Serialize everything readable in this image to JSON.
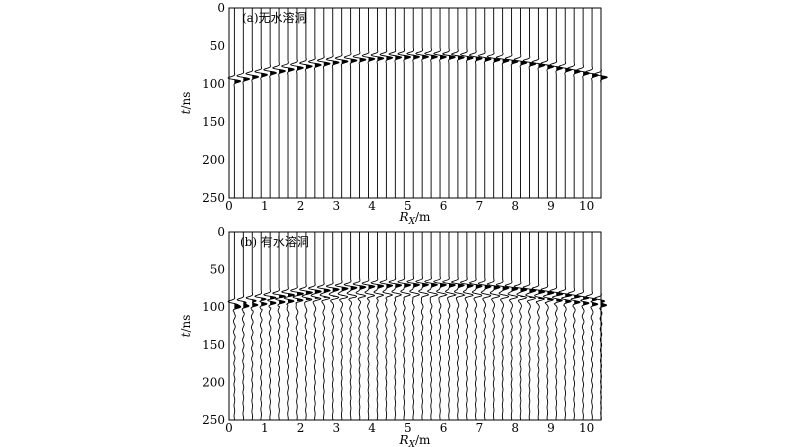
{
  "chart_data": [
    {
      "type": "wiggle",
      "panel_label": "(a)无水溶洞",
      "xlabel": {
        "var": "R",
        "sub": "X",
        "unit": "/m"
      },
      "ylabel": {
        "var": "t",
        "unit": "/ns"
      },
      "xlim": [
        0,
        10.4
      ],
      "ylim": [
        0,
        250
      ],
      "x_ticks": [
        0,
        1,
        2,
        3,
        4,
        5,
        6,
        7,
        8,
        9,
        10
      ],
      "y_ticks": [
        0,
        50,
        100,
        150,
        200,
        250
      ],
      "trace_count": 42,
      "trace_spacing_m": 0.25,
      "direct_reflection_time_ns": [
        96,
        62,
        96
      ],
      "direct_reflection_apex_x": 5.5,
      "deep_reflection": null,
      "ringing": false
    },
    {
      "type": "wiggle",
      "panel_label": "(b) 有水溶洞",
      "xlabel": {
        "var": "R",
        "sub": "X",
        "unit": "/m"
      },
      "ylabel": {
        "var": "t",
        "unit": "/ns"
      },
      "xlim": [
        0,
        10.4
      ],
      "ylim": [
        0,
        250
      ],
      "x_ticks": [
        0,
        1,
        2,
        3,
        4,
        5,
        6,
        7,
        8,
        9,
        10
      ],
      "y_ticks": [
        0,
        50,
        100,
        150,
        200,
        250
      ],
      "trace_count": 42,
      "trace_spacing_m": 0.25,
      "direct_reflection_time_ns": [
        96,
        68,
        96
      ],
      "direct_reflection_apex_x": 5.5,
      "deep_reflection": {
        "apex_x": 5.5,
        "apex_time_ns": 82,
        "edge_time_ns": 100
      },
      "ringing": true
    }
  ]
}
